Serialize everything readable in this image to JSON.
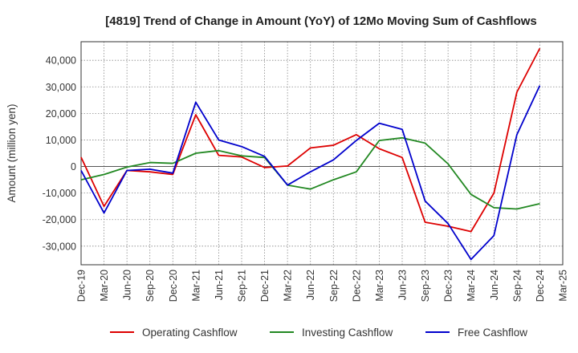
{
  "chart_data": {
    "type": "line",
    "title": "[4819]  Trend of Change in Amount (YoY) of 12Mo Moving Sum of Cashflows",
    "xlabel": "",
    "ylabel": "Amount (million yen)",
    "ylim": [
      -37000,
      47000
    ],
    "yticks": [
      40000,
      30000,
      20000,
      10000,
      0,
      -10000,
      -20000,
      -30000
    ],
    "ytick_labels": [
      "40,000",
      "30,000",
      "20,000",
      "10,000",
      "0",
      "-10,000",
      "-20,000",
      "-30,000"
    ],
    "categories": [
      "Dec-19",
      "Mar-20",
      "Jun-20",
      "Sep-20",
      "Dec-20",
      "Mar-21",
      "Jun-21",
      "Sep-21",
      "Dec-21",
      "Mar-22",
      "Jun-22",
      "Sep-22",
      "Dec-22",
      "Mar-23",
      "Jun-23",
      "Sep-23",
      "Dec-23",
      "Mar-24",
      "Jun-24",
      "Sep-24",
      "Dec-24",
      "Mar-25"
    ],
    "grid": true,
    "legend": "bottom",
    "series": [
      {
        "name": "Operating Cashflow",
        "color": "#dd0000",
        "values": [
          3500,
          -15000,
          -1500,
          -2000,
          -3000,
          19500,
          4200,
          3600,
          -400,
          200,
          7000,
          8000,
          12000,
          6700,
          3400,
          -21000,
          -22500,
          -24500,
          -10000,
          28000,
          44500,
          null
        ]
      },
      {
        "name": "Investing Cashflow",
        "color": "#228822",
        "values": [
          -5000,
          -3000,
          -200,
          1500,
          1200,
          5000,
          6000,
          4000,
          3400,
          -7000,
          -8500,
          -5000,
          -2000,
          9800,
          10800,
          8800,
          1000,
          -10500,
          -15500,
          -16000,
          -14000,
          null
        ]
      },
      {
        "name": "Free Cashflow",
        "color": "#0000cc",
        "values": [
          -1500,
          -17500,
          -1500,
          -1000,
          -2500,
          24200,
          10000,
          7500,
          3800,
          -7000,
          -2000,
          2500,
          9800,
          16300,
          14000,
          -13000,
          -21500,
          -35000,
          -26000,
          12000,
          30500,
          null
        ]
      }
    ]
  }
}
